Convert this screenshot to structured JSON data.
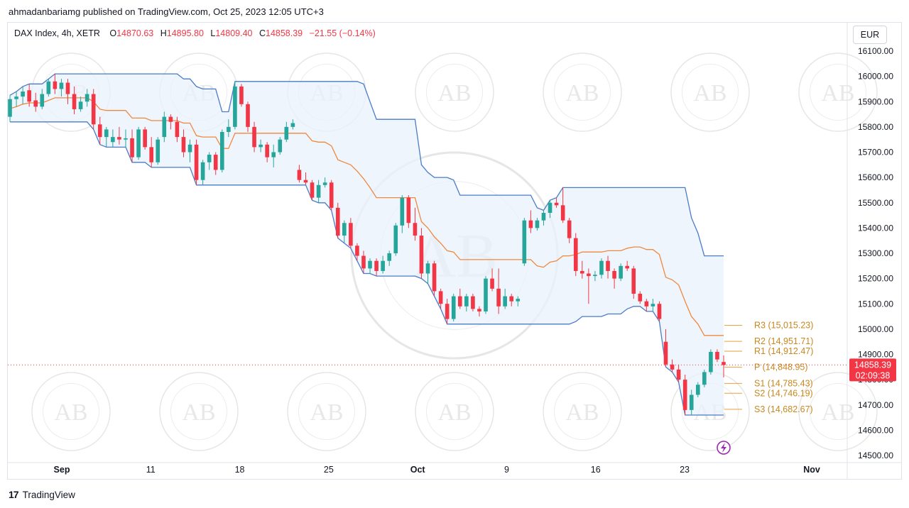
{
  "header": {
    "publish_line": "ahmadanbariamg published on TradingView.com, Oct 25, 2023 12:05 UTC+3"
  },
  "legend": {
    "symbol": "DAX Index, 4h, XETR",
    "open_label": "O",
    "open": "14870.63",
    "high_label": "H",
    "high": "14895.80",
    "low_label": "L",
    "low": "14809.40",
    "close_label": "C",
    "close": "14858.39",
    "change": "−21.55 (−0.14%)"
  },
  "currency": "EUR",
  "watermark_text": "AB",
  "footer": {
    "brand": "TradingView",
    "logo_mark": "17"
  },
  "colors": {
    "up": "#26a69a",
    "down": "#f23645",
    "channel": "#4a7bc8",
    "midline": "#f0883e",
    "channel_fill": "#eaf2fb",
    "pivot": "#e6a23c",
    "price_label_bg": "#f23645"
  },
  "chart_data": {
    "type": "candlestick",
    "title": "",
    "xlabel": "",
    "ylabel": "",
    "ylim": [
      14500,
      16100
    ],
    "y_ticks": [
      "14500.00",
      "14600.00",
      "14700.00",
      "14800.00",
      "14900.00",
      "15000.00",
      "15100.00",
      "15200.00",
      "15300.00",
      "15400.00",
      "15500.00",
      "15600.00",
      "15700.00",
      "15800.00",
      "15900.00",
      "16000.00",
      "16100.00"
    ],
    "x_ticks": [
      {
        "label": "Sep",
        "day": 4,
        "bold": true
      },
      {
        "label": "11",
        "day": 11,
        "bold": false
      },
      {
        "label": "18",
        "day": 18,
        "bold": false
      },
      {
        "label": "25",
        "day": 25,
        "bold": false
      },
      {
        "label": "Oct",
        "day": 32,
        "bold": true
      },
      {
        "label": "9",
        "day": 39,
        "bold": false
      },
      {
        "label": "16",
        "day": 46,
        "bold": false
      },
      {
        "label": "23",
        "day": 53,
        "bold": false
      },
      {
        "label": "Nov",
        "day": 63,
        "bold": true
      }
    ],
    "current_price": {
      "price": "14858.39",
      "countdown": "02:09:38",
      "value": 14858.39
    },
    "pivots": [
      {
        "label": "R3 (15,015.23)",
        "value": 15015.23
      },
      {
        "label": "R2 (14,951.71)",
        "value": 14951.71
      },
      {
        "label": "R1 (14,912.47)",
        "value": 14912.47
      },
      {
        "label": "P (14,848.95)",
        "value": 14848.95
      },
      {
        "label": "S1 (14,785.43)",
        "value": 14785.43
      },
      {
        "label": "S2 (14,746.19)",
        "value": 14746.19
      },
      {
        "label": "S3 (14,682.67)",
        "value": 14682.67
      }
    ],
    "series": [
      {
        "name": "",
        "candles": [
          [
            15840,
            15925,
            15820,
            15910
          ],
          [
            15910,
            15940,
            15880,
            15920
          ],
          [
            15920,
            15960,
            15890,
            15940
          ],
          [
            15945,
            15970,
            15880,
            15900
          ],
          [
            15905,
            15935,
            15860,
            15880
          ],
          [
            15880,
            15950,
            15870,
            15930
          ],
          [
            15930,
            15990,
            15920,
            15980
          ],
          [
            15980,
            16010,
            15930,
            15950
          ],
          [
            15950,
            15990,
            15920,
            15975
          ],
          [
            15975,
            15990,
            15890,
            15930
          ],
          [
            15930,
            15960,
            15850,
            15870
          ],
          [
            15870,
            15920,
            15860,
            15900
          ],
          [
            15900,
            15950,
            15880,
            15930
          ],
          [
            15930,
            15950,
            15790,
            15810
          ],
          [
            15810,
            15840,
            15730,
            15760
          ],
          [
            15760,
            15800,
            15720,
            15790
          ],
          [
            15740,
            15790,
            15720,
            15760
          ],
          [
            15760,
            15800,
            15730,
            15750
          ],
          [
            15750,
            15790,
            15720,
            15755
          ],
          [
            15755,
            15790,
            15660,
            15680
          ],
          [
            15680,
            15800,
            15670,
            15790
          ],
          [
            15790,
            15800,
            15710,
            15720
          ],
          [
            15720,
            15760,
            15640,
            15660
          ],
          [
            15660,
            15760,
            15650,
            15750
          ],
          [
            15760,
            15860,
            15740,
            15840
          ],
          [
            15840,
            15850,
            15790,
            15820
          ],
          [
            15820,
            15840,
            15740,
            15760
          ],
          [
            15760,
            15790,
            15680,
            15700
          ],
          [
            15700,
            15750,
            15660,
            15730
          ],
          [
            15730,
            15750,
            15570,
            15590
          ],
          [
            15590,
            15670,
            15570,
            15660
          ],
          [
            15660,
            15700,
            15630,
            15690
          ],
          [
            15690,
            15700,
            15610,
            15630
          ],
          [
            15630,
            15790,
            15620,
            15780
          ],
          [
            15780,
            15830,
            15760,
            15800
          ],
          [
            15800,
            15980,
            15790,
            15960
          ],
          [
            15960,
            15970,
            15880,
            15890
          ],
          [
            15890,
            15900,
            15780,
            15800
          ],
          [
            15800,
            15820,
            15700,
            15720
          ],
          [
            15720,
            15750,
            15700,
            15730
          ],
          [
            15730,
            15740,
            15660,
            15680
          ],
          [
            15680,
            15730,
            15640,
            15700
          ],
          [
            15700,
            15760,
            15690,
            15750
          ],
          [
            15750,
            15820,
            15740,
            15800
          ],
          [
            15800,
            15830,
            15790,
            15815
          ],
          [
            15630,
            15650,
            15580,
            15590
          ],
          [
            15590,
            15620,
            15570,
            15580
          ],
          [
            15580,
            15590,
            15510,
            15520
          ],
          [
            15520,
            15590,
            15500,
            15570
          ],
          [
            15570,
            15600,
            15560,
            15580
          ],
          [
            15580,
            15590,
            15470,
            15480
          ],
          [
            15480,
            15500,
            15360,
            15370
          ],
          [
            15370,
            15430,
            15340,
            15420
          ],
          [
            15420,
            15440,
            15320,
            15330
          ],
          [
            15330,
            15340,
            15270,
            15290
          ],
          [
            15290,
            15310,
            15220,
            15240
          ],
          [
            15240,
            15280,
            15220,
            15270
          ],
          [
            15270,
            15280,
            15210,
            15230
          ],
          [
            15230,
            15290,
            15220,
            15270
          ],
          [
            15270,
            15310,
            15250,
            15300
          ],
          [
            15300,
            15420,
            15290,
            15410
          ],
          [
            15410,
            15530,
            15380,
            15520
          ],
          [
            15520,
            15530,
            15400,
            15420
          ],
          [
            15420,
            15480,
            15350,
            15370
          ],
          [
            15370,
            15400,
            15200,
            15220
          ],
          [
            15220,
            15270,
            15180,
            15260
          ],
          [
            15260,
            15270,
            15130,
            15150
          ],
          [
            15150,
            15160,
            15080,
            15100
          ],
          [
            15100,
            15120,
            15020,
            15040
          ],
          [
            15040,
            15140,
            15030,
            15130
          ],
          [
            15130,
            15160,
            15080,
            15090
          ],
          [
            15090,
            15140,
            15070,
            15130
          ],
          [
            15130,
            15140,
            15070,
            15080
          ],
          [
            15080,
            15090,
            15050,
            15070
          ],
          [
            15070,
            15210,
            15060,
            15200
          ],
          [
            15200,
            15240,
            15150,
            15160
          ],
          [
            15160,
            15240,
            15060,
            15090
          ],
          [
            15090,
            15160,
            15080,
            15130
          ],
          [
            15130,
            15140,
            15090,
            15110
          ],
          [
            15110,
            15130,
            15090,
            15120
          ],
          [
            15260,
            15440,
            15250,
            15430
          ],
          [
            15430,
            15470,
            15380,
            15400
          ],
          [
            15400,
            15440,
            15390,
            15430
          ],
          [
            15430,
            15470,
            15410,
            15460
          ],
          [
            15460,
            15510,
            15440,
            15500
          ],
          [
            15500,
            15520,
            15480,
            15490
          ],
          [
            15490,
            15560,
            15420,
            15430
          ],
          [
            15430,
            15440,
            15340,
            15360
          ],
          [
            15360,
            15380,
            15210,
            15230
          ],
          [
            15230,
            15270,
            15200,
            15220
          ],
          [
            15220,
            15240,
            15100,
            15210
          ],
          [
            15210,
            15230,
            15190,
            15215
          ],
          [
            15215,
            15280,
            15200,
            15270
          ],
          [
            15270,
            15290,
            15200,
            15230
          ],
          [
            15230,
            15240,
            15160,
            15200
          ],
          [
            15200,
            15260,
            15190,
            15250
          ],
          [
            15250,
            15270,
            15230,
            15240
          ],
          [
            15240,
            15250,
            15120,
            15140
          ],
          [
            15140,
            15150,
            15100,
            15110
          ],
          [
            15110,
            15120,
            15070,
            15090
          ],
          [
            15090,
            15120,
            15070,
            15100
          ],
          [
            15100,
            15110,
            15030,
            15040
          ],
          [
            14950,
            15000,
            14850,
            14860
          ],
          [
            14860,
            14880,
            14830,
            14840
          ],
          [
            14840,
            14860,
            14790,
            14800
          ],
          [
            14800,
            14820,
            14660,
            14680
          ],
          [
            14680,
            14760,
            14660,
            14740
          ],
          [
            14740,
            14790,
            14730,
            14780
          ],
          [
            14780,
            14840,
            14770,
            14830
          ],
          [
            14830,
            14920,
            14820,
            14910
          ],
          [
            14910,
            14920,
            14870,
            14880
          ],
          [
            14870,
            14896,
            14809,
            14858
          ]
        ]
      }
    ]
  }
}
